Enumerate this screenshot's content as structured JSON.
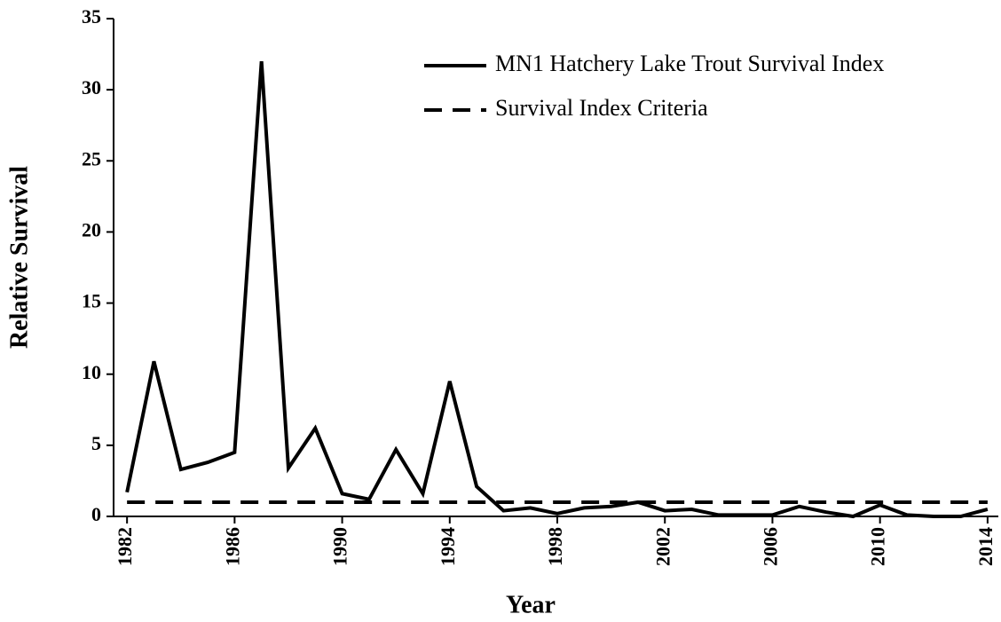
{
  "chart_data": {
    "type": "line",
    "xlabel": "Year",
    "ylabel": "Relative Survival",
    "x": [
      1982,
      1983,
      1984,
      1985,
      1986,
      1987,
      1988,
      1989,
      1990,
      1991,
      1992,
      1993,
      1994,
      1995,
      1996,
      1997,
      1998,
      1999,
      2000,
      2001,
      2002,
      2003,
      2004,
      2005,
      2006,
      2007,
      2008,
      2009,
      2010,
      2011,
      2012,
      2013,
      2014
    ],
    "series": [
      {
        "name": "MN1 Hatchery Lake Trout Survival Index",
        "color": "#000000",
        "dash": false,
        "values": [
          1.7,
          10.9,
          3.3,
          3.8,
          4.5,
          32,
          3.4,
          6.2,
          1.6,
          1.2,
          4.7,
          1.6,
          9.5,
          2.1,
          0.4,
          0.6,
          0.2,
          0.6,
          0.7,
          1.0,
          0.4,
          0.5,
          0.1,
          0.1,
          0.1,
          0.7,
          0.3,
          0.0,
          0.8,
          0.1,
          0.0,
          0.0,
          0.5
        ]
      },
      {
        "name": "Survival Index Criteria",
        "color": "#000000",
        "dash": true,
        "values": [
          1,
          1,
          1,
          1,
          1,
          1,
          1,
          1,
          1,
          1,
          1,
          1,
          1,
          1,
          1,
          1,
          1,
          1,
          1,
          1,
          1,
          1,
          1,
          1,
          1,
          1,
          1,
          1,
          1,
          1,
          1,
          1,
          1
        ]
      }
    ],
    "xlim": [
      1981.5,
      2014.4
    ],
    "xticks": [
      1982,
      1986,
      1990,
      1994,
      1998,
      2002,
      2006,
      2010,
      2014
    ],
    "ylim": [
      0,
      35
    ],
    "yticks": [
      0,
      5,
      10,
      15,
      20,
      25,
      30,
      35
    ],
    "grid": false,
    "legend": "upper right"
  }
}
